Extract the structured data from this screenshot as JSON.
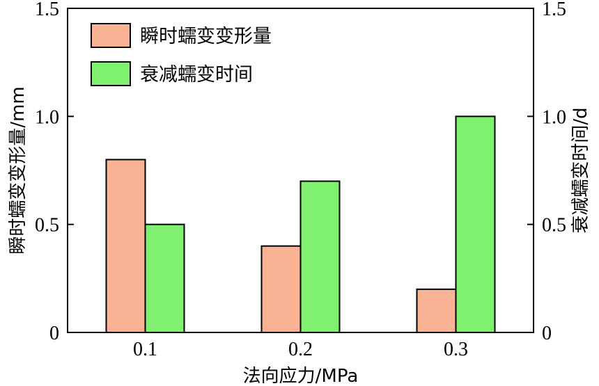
{
  "chart_data": {
    "type": "bar",
    "categories": [
      "0.1",
      "0.2",
      "0.3"
    ],
    "series": [
      {
        "name": "瞬时蠕变变形量",
        "axis": "left",
        "values": [
          0.8,
          0.4,
          0.2
        ],
        "color": "#F9B394"
      },
      {
        "name": "衰减蠕变时间",
        "axis": "right",
        "values": [
          0.5,
          0.7,
          1.0
        ],
        "color": "#7FF06F"
      }
    ],
    "xlabel": "法向应力/MPa",
    "ylabel_left": "瞬时蠕变变形量/mm",
    "ylabel_right": "衰减蠕变时间/d",
    "ylim_left": [
      0,
      1.5
    ],
    "ylim_right": [
      0,
      1.5
    ],
    "yticks_left": [
      "0",
      "0.5",
      "1.0",
      "1.5"
    ],
    "yticks_right": [
      "0",
      "0.5",
      "1.0",
      "1.5"
    ],
    "grid": false,
    "legend_position": "top-left"
  }
}
